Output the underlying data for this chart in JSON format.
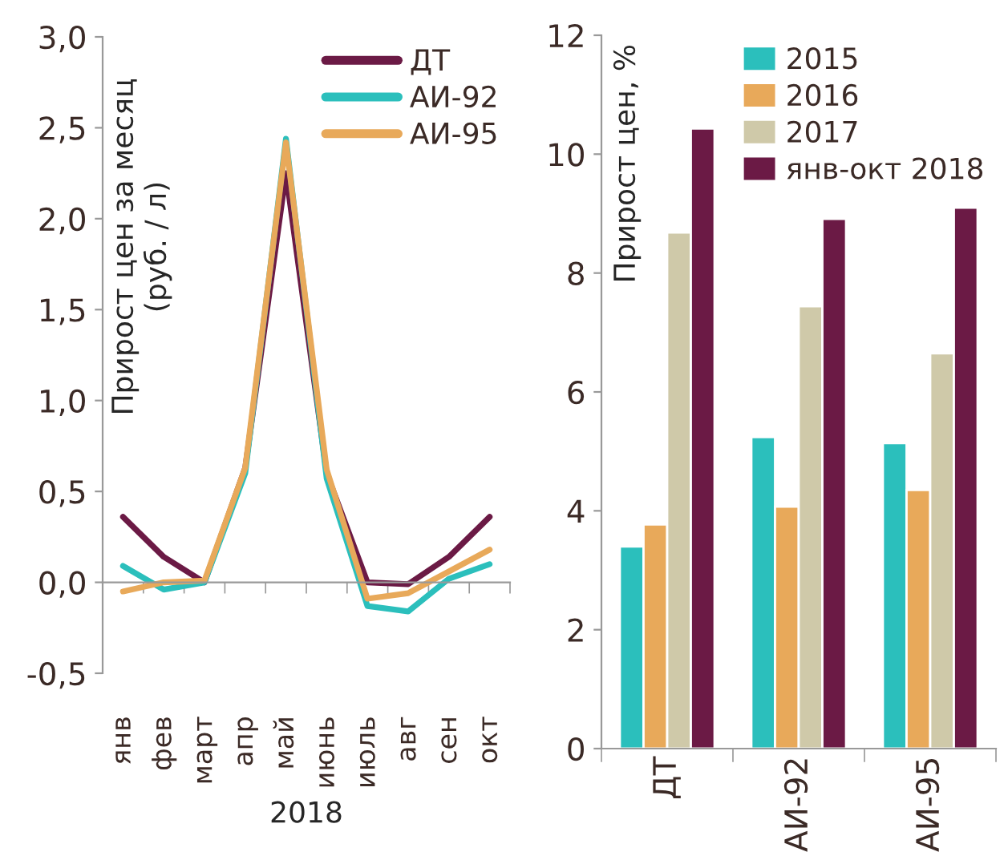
{
  "chart_data": [
    {
      "type": "line",
      "ylabel": "Прирост цен за месяц\n(руб. / л)",
      "xlabel": "2018",
      "categories": [
        "янв",
        "фев",
        "март",
        "апр",
        "май",
        "июнь",
        "июль",
        "авг",
        "сен",
        "окт"
      ],
      "series": [
        {
          "name": "ДТ",
          "color": "#6b1a45",
          "values": [
            0.36,
            0.14,
            0.0,
            0.63,
            2.25,
            0.6,
            0.0,
            -0.01,
            0.14,
            0.36
          ]
        },
        {
          "name": "АИ-92",
          "color": "#2bbfbc",
          "values": [
            0.09,
            -0.04,
            0.0,
            0.6,
            2.44,
            0.57,
            -0.13,
            -0.16,
            0.02,
            0.1
          ]
        },
        {
          "name": "АИ-95",
          "color": "#e8a95a",
          "values": [
            -0.05,
            0.0,
            0.01,
            0.63,
            2.42,
            0.62,
            -0.09,
            -0.06,
            0.06,
            0.18
          ]
        }
      ],
      "ylim": [
        -0.5,
        3.0
      ],
      "yticks": [
        {
          "value": -0.5,
          "label": "-0,5"
        },
        {
          "value": 0.0,
          "label": "0,0"
        },
        {
          "value": 0.5,
          "label": "0,5"
        },
        {
          "value": 1.0,
          "label": "1,0"
        },
        {
          "value": 1.5,
          "label": "1,5"
        },
        {
          "value": 2.0,
          "label": "2,0"
        },
        {
          "value": 2.5,
          "label": "2,5"
        },
        {
          "value": 3.0,
          "label": "3,0"
        }
      ],
      "legend": "top right",
      "marker": "none",
      "line_style": "solid"
    },
    {
      "type": "bar",
      "ylabel": "Прирост цен, %",
      "categories": [
        "ДТ",
        "АИ-92",
        "АИ-95"
      ],
      "series": [
        {
          "name": "2015",
          "color": "#2bbfbc",
          "values": [
            3.4,
            5.24,
            5.14
          ]
        },
        {
          "name": "2016",
          "color": "#e8a95a",
          "values": [
            3.77,
            4.07,
            4.35
          ]
        },
        {
          "name": "2017",
          "color": "#cfc9a9",
          "values": [
            8.68,
            7.44,
            6.65
          ]
        },
        {
          "name": "янв-окт 2018",
          "color": "#6b1a45",
          "values": [
            10.43,
            8.91,
            9.1
          ]
        }
      ],
      "ylim": [
        0,
        12
      ],
      "yticks": [
        0,
        2,
        4,
        6,
        8,
        10,
        12
      ],
      "legend": "top right",
      "grid": false
    }
  ]
}
